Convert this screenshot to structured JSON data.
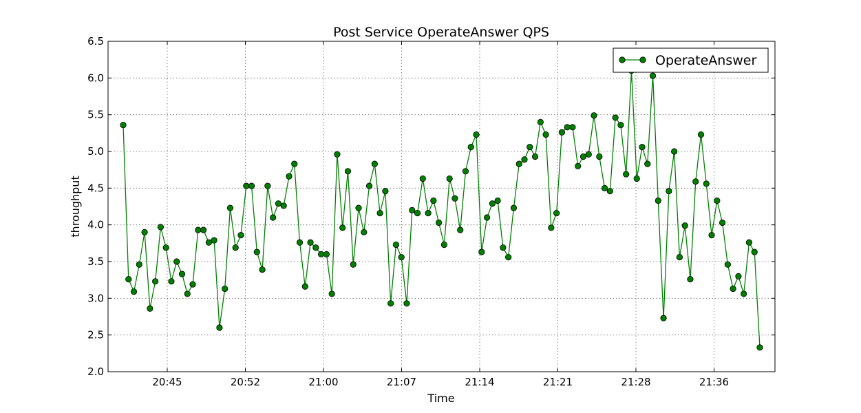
{
  "chart_data": {
    "type": "line",
    "title": "Post Service OperateAnswer QPS",
    "xlabel": "Time",
    "ylabel": "throughput",
    "ylim": [
      2.0,
      6.5
    ],
    "yticks": [
      "2.0",
      "2.5",
      "3.0",
      "3.5",
      "4.0",
      "4.5",
      "5.0",
      "5.5",
      "6.0",
      "6.5"
    ],
    "xticks": [
      "20:45",
      "20:52",
      "21:00",
      "21:07",
      "21:14",
      "21:21",
      "21:28",
      "21:36"
    ],
    "grid": true,
    "legend_position": "top-right",
    "color": "#007f00",
    "series": [
      {
        "name": "OperateAnswer",
        "values": [
          5.36,
          3.26,
          3.09,
          3.46,
          3.9,
          2.86,
          3.23,
          3.97,
          3.69,
          3.23,
          3.5,
          3.33,
          3.06,
          3.19,
          3.93,
          3.93,
          3.76,
          3.79,
          2.6,
          3.13,
          4.23,
          3.69,
          3.86,
          4.53,
          4.53,
          3.63,
          3.39,
          4.53,
          4.1,
          4.29,
          4.26,
          4.66,
          4.83,
          3.76,
          3.16,
          3.76,
          3.69,
          3.6,
          3.6,
          3.06,
          4.96,
          3.96,
          4.73,
          3.46,
          4.23,
          3.9,
          4.53,
          4.83,
          4.16,
          4.46,
          2.93,
          3.73,
          3.56,
          2.93,
          4.2,
          4.16,
          4.63,
          4.16,
          4.33,
          4.03,
          3.73,
          4.63,
          4.36,
          3.93,
          4.73,
          5.06,
          5.23,
          3.63,
          4.1,
          4.29,
          4.33,
          3.69,
          3.56,
          4.23,
          4.83,
          4.89,
          5.06,
          4.93,
          5.4,
          5.23,
          3.96,
          4.16,
          5.26,
          5.33,
          5.33,
          4.8,
          4.93,
          4.96,
          5.49,
          4.93,
          4.5,
          4.46,
          5.46,
          5.36,
          4.69,
          6.1,
          4.63,
          5.06,
          4.83,
          6.03,
          4.33,
          2.73,
          4.46,
          5.0,
          3.56,
          3.99,
          3.26,
          4.59,
          5.23,
          4.56,
          3.86,
          4.33,
          4.03,
          3.46,
          3.13,
          3.3,
          3.06,
          3.76,
          3.63,
          2.33
        ]
      }
    ]
  }
}
